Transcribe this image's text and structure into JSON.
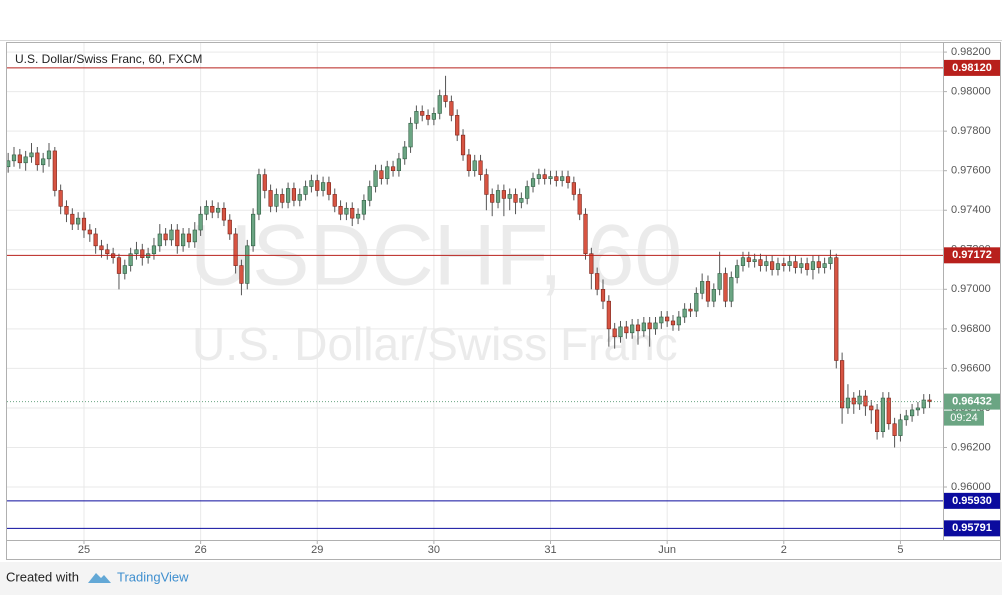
{
  "chart_data": {
    "type": "candlestick",
    "title": "U.S. Dollar/Swiss Franc, 60, FXCM",
    "watermark": "USDCHF, 60",
    "watermark_subtitle": "U.S. Dollar/Swiss Franc",
    "footer_text": "Created with",
    "footer_brand": "TradingView",
    "up_color": "#6ba583",
    "down_color": "#d75442",
    "ylim": [
      0.95732,
      0.98251
    ],
    "yticks": [
      {
        "value": 0.982,
        "label": "0.98200"
      },
      {
        "value": 0.98,
        "label": "0.98000"
      },
      {
        "value": 0.978,
        "label": "0.97800"
      },
      {
        "value": 0.976,
        "label": "0.97600"
      },
      {
        "value": 0.974,
        "label": "0.97400"
      },
      {
        "value": 0.972,
        "label": "0.97200"
      },
      {
        "value": 0.97,
        "label": "0.97000"
      },
      {
        "value": 0.968,
        "label": "0.96800"
      },
      {
        "value": 0.966,
        "label": "0.96600"
      },
      {
        "value": 0.964,
        "label": "0.96400"
      },
      {
        "value": 0.962,
        "label": "0.96200"
      },
      {
        "value": 0.96,
        "label": "0.96000"
      }
    ],
    "xlim": [
      -0.2,
      160.3
    ],
    "xticks": [
      {
        "value": 13,
        "label": "25"
      },
      {
        "value": 33,
        "label": "26"
      },
      {
        "value": 53,
        "label": "29"
      },
      {
        "value": 73,
        "label": "30"
      },
      {
        "value": 93,
        "label": "31"
      },
      {
        "value": 113,
        "label": "Jun"
      },
      {
        "value": 133,
        "label": "2"
      },
      {
        "value": 153,
        "label": "5"
      }
    ],
    "grid": true,
    "hlines": [
      {
        "value": 0.9812,
        "label": "0.98120",
        "color": "#b8201c"
      },
      {
        "value": 0.97172,
        "label": "0.97172",
        "color": "#b8201c"
      },
      {
        "value": 0.9593,
        "label": "0.95930",
        "color": "#0b0b9e"
      },
      {
        "value": 0.95791,
        "color": "#0b0b9e"
      }
    ],
    "last_price": 0.96432,
    "countdown": "09:24",
    "ohlc": [
      [
        0.9762,
        0.9769,
        0.9759,
        0.9765
      ],
      [
        0.9765,
        0.9772,
        0.9762,
        0.9768
      ],
      [
        0.9768,
        0.9771,
        0.9761,
        0.9764
      ],
      [
        0.9764,
        0.977,
        0.976,
        0.9767
      ],
      [
        0.9767,
        0.9774,
        0.9764,
        0.9769
      ],
      [
        0.9769,
        0.9772,
        0.976,
        0.9763
      ],
      [
        0.9763,
        0.9769,
        0.9759,
        0.9766
      ],
      [
        0.9766,
        0.9774,
        0.9762,
        0.977
      ],
      [
        0.977,
        0.9772,
        0.9747,
        0.975
      ],
      [
        0.975,
        0.9753,
        0.9738,
        0.9742
      ],
      [
        0.9742,
        0.9745,
        0.9734,
        0.9738
      ],
      [
        0.9738,
        0.9741,
        0.973,
        0.9733
      ],
      [
        0.9733,
        0.9739,
        0.973,
        0.9736
      ],
      [
        0.9736,
        0.9739,
        0.9726,
        0.973
      ],
      [
        0.973,
        0.9733,
        0.9724,
        0.9728
      ],
      [
        0.9728,
        0.9731,
        0.9718,
        0.9722
      ],
      [
        0.9722,
        0.9725,
        0.9716,
        0.972
      ],
      [
        0.972,
        0.9723,
        0.9715,
        0.9718
      ],
      [
        0.9718,
        0.9721,
        0.9713,
        0.9716
      ],
      [
        0.9716,
        0.9718,
        0.97,
        0.9708
      ],
      [
        0.9708,
        0.9715,
        0.9705,
        0.9712
      ],
      [
        0.9712,
        0.9721,
        0.9709,
        0.9718
      ],
      [
        0.9718,
        0.9724,
        0.9715,
        0.972
      ],
      [
        0.972,
        0.9723,
        0.9712,
        0.9716
      ],
      [
        0.9716,
        0.9721,
        0.9713,
        0.9718
      ],
      [
        0.9718,
        0.9726,
        0.9715,
        0.9722
      ],
      [
        0.9722,
        0.9733,
        0.9719,
        0.9728
      ],
      [
        0.9728,
        0.9731,
        0.9722,
        0.9725
      ],
      [
        0.9725,
        0.9733,
        0.9722,
        0.973
      ],
      [
        0.973,
        0.9733,
        0.9718,
        0.9722
      ],
      [
        0.9722,
        0.9731,
        0.9719,
        0.9728
      ],
      [
        0.9728,
        0.9731,
        0.9721,
        0.9724
      ],
      [
        0.9724,
        0.9734,
        0.9721,
        0.973
      ],
      [
        0.973,
        0.9742,
        0.9727,
        0.9738
      ],
      [
        0.9738,
        0.9745,
        0.9735,
        0.9742
      ],
      [
        0.9742,
        0.9745,
        0.9736,
        0.9739
      ],
      [
        0.9739,
        0.9744,
        0.9736,
        0.9741
      ],
      [
        0.9741,
        0.9744,
        0.9732,
        0.9735
      ],
      [
        0.9735,
        0.9738,
        0.9725,
        0.9728
      ],
      [
        0.9728,
        0.9731,
        0.9708,
        0.9712
      ],
      [
        0.9712,
        0.9715,
        0.9697,
        0.9703
      ],
      [
        0.9703,
        0.9725,
        0.97,
        0.9722
      ],
      [
        0.9722,
        0.9741,
        0.9719,
        0.9738
      ],
      [
        0.9738,
        0.9761,
        0.9735,
        0.9758
      ],
      [
        0.9758,
        0.9761,
        0.9746,
        0.975
      ],
      [
        0.975,
        0.9753,
        0.9739,
        0.9742
      ],
      [
        0.9742,
        0.9751,
        0.9739,
        0.9748
      ],
      [
        0.9748,
        0.9751,
        0.9741,
        0.9744
      ],
      [
        0.9744,
        0.9754,
        0.9741,
        0.9751
      ],
      [
        0.9751,
        0.9754,
        0.9742,
        0.9745
      ],
      [
        0.9745,
        0.9751,
        0.9742,
        0.9748
      ],
      [
        0.9748,
        0.9755,
        0.9745,
        0.9752
      ],
      [
        0.9752,
        0.9758,
        0.9749,
        0.9755
      ],
      [
        0.9755,
        0.9758,
        0.9747,
        0.975
      ],
      [
        0.975,
        0.9757,
        0.9747,
        0.9754
      ],
      [
        0.9754,
        0.9757,
        0.9745,
        0.9748
      ],
      [
        0.9748,
        0.9751,
        0.9739,
        0.9742
      ],
      [
        0.9742,
        0.9745,
        0.9735,
        0.9738
      ],
      [
        0.9738,
        0.9744,
        0.9735,
        0.9741
      ],
      [
        0.9741,
        0.9744,
        0.9732,
        0.9736
      ],
      [
        0.9736,
        0.9741,
        0.9733,
        0.9738
      ],
      [
        0.9738,
        0.9748,
        0.9735,
        0.9745
      ],
      [
        0.9745,
        0.9755,
        0.9742,
        0.9752
      ],
      [
        0.9752,
        0.9763,
        0.9749,
        0.976
      ],
      [
        0.976,
        0.9763,
        0.9753,
        0.9756
      ],
      [
        0.9756,
        0.9765,
        0.9753,
        0.9762
      ],
      [
        0.9762,
        0.9765,
        0.9757,
        0.976
      ],
      [
        0.976,
        0.9769,
        0.9757,
        0.9766
      ],
      [
        0.9766,
        0.9775,
        0.9763,
        0.9772
      ],
      [
        0.9772,
        0.9787,
        0.9769,
        0.9784
      ],
      [
        0.9784,
        0.9793,
        0.9781,
        0.979
      ],
      [
        0.979,
        0.9793,
        0.9785,
        0.9788
      ],
      [
        0.9788,
        0.9791,
        0.9783,
        0.9786
      ],
      [
        0.9786,
        0.9792,
        0.9783,
        0.9789
      ],
      [
        0.9789,
        0.9801,
        0.9786,
        0.9798
      ],
      [
        0.9798,
        0.9808,
        0.9792,
        0.9795
      ],
      [
        0.9795,
        0.9798,
        0.9785,
        0.9788
      ],
      [
        0.9788,
        0.9791,
        0.9775,
        0.9778
      ],
      [
        0.9778,
        0.9781,
        0.9765,
        0.9768
      ],
      [
        0.9768,
        0.9771,
        0.9757,
        0.976
      ],
      [
        0.976,
        0.9768,
        0.9757,
        0.9765
      ],
      [
        0.9765,
        0.9768,
        0.9755,
        0.9758
      ],
      [
        0.9758,
        0.9761,
        0.974,
        0.9748
      ],
      [
        0.9748,
        0.9751,
        0.9737,
        0.9744
      ],
      [
        0.9744,
        0.9753,
        0.9741,
        0.975
      ],
      [
        0.975,
        0.9753,
        0.9737,
        0.9746
      ],
      [
        0.9746,
        0.9751,
        0.974,
        0.9748
      ],
      [
        0.9748,
        0.9751,
        0.9738,
        0.9744
      ],
      [
        0.9744,
        0.9749,
        0.9741,
        0.9746
      ],
      [
        0.9746,
        0.9755,
        0.9743,
        0.9752
      ],
      [
        0.9752,
        0.9759,
        0.9749,
        0.9756
      ],
      [
        0.9756,
        0.9761,
        0.9753,
        0.9758
      ],
      [
        0.9758,
        0.9761,
        0.9753,
        0.9756
      ],
      [
        0.9756,
        0.976,
        0.9753,
        0.9757
      ],
      [
        0.9757,
        0.976,
        0.9752,
        0.9755
      ],
      [
        0.9755,
        0.976,
        0.9752,
        0.9757
      ],
      [
        0.9757,
        0.976,
        0.9751,
        0.9754
      ],
      [
        0.9754,
        0.9757,
        0.9745,
        0.9748
      ],
      [
        0.9748,
        0.9751,
        0.9735,
        0.9738
      ],
      [
        0.9738,
        0.9741,
        0.9715,
        0.9718
      ],
      [
        0.9718,
        0.9721,
        0.97,
        0.9708
      ],
      [
        0.9708,
        0.9711,
        0.9697,
        0.97
      ],
      [
        0.97,
        0.9705,
        0.969,
        0.9694
      ],
      [
        0.9694,
        0.9697,
        0.9671,
        0.968
      ],
      [
        0.968,
        0.9683,
        0.967,
        0.9676
      ],
      [
        0.9676,
        0.9684,
        0.9673,
        0.9681
      ],
      [
        0.9681,
        0.9684,
        0.9675,
        0.9678
      ],
      [
        0.9678,
        0.9685,
        0.9675,
        0.9682
      ],
      [
        0.9682,
        0.9685,
        0.9672,
        0.9679
      ],
      [
        0.9679,
        0.9686,
        0.9676,
        0.9683
      ],
      [
        0.9683,
        0.9686,
        0.9671,
        0.968
      ],
      [
        0.968,
        0.9686,
        0.9677,
        0.9683
      ],
      [
        0.9683,
        0.9689,
        0.968,
        0.9686
      ],
      [
        0.9686,
        0.9689,
        0.9681,
        0.9684
      ],
      [
        0.9684,
        0.9687,
        0.9679,
        0.9682
      ],
      [
        0.9682,
        0.9689,
        0.9679,
        0.9686
      ],
      [
        0.9686,
        0.9693,
        0.9683,
        0.969
      ],
      [
        0.969,
        0.9693,
        0.9686,
        0.9689
      ],
      [
        0.9689,
        0.9701,
        0.9686,
        0.9698
      ],
      [
        0.9698,
        0.9708,
        0.9695,
        0.9704
      ],
      [
        0.9704,
        0.9707,
        0.9691,
        0.9694
      ],
      [
        0.9694,
        0.9703,
        0.9691,
        0.97
      ],
      [
        0.97,
        0.9719,
        0.9697,
        0.9708
      ],
      [
        0.9708,
        0.9711,
        0.9691,
        0.9694
      ],
      [
        0.9694,
        0.9709,
        0.9691,
        0.9706
      ],
      [
        0.9706,
        0.9715,
        0.9703,
        0.9712
      ],
      [
        0.9712,
        0.9719,
        0.9709,
        0.9716
      ],
      [
        0.9716,
        0.9719,
        0.9711,
        0.9714
      ],
      [
        0.9714,
        0.9718,
        0.9711,
        0.9715
      ],
      [
        0.9715,
        0.9718,
        0.9709,
        0.9712
      ],
      [
        0.9712,
        0.9717,
        0.9709,
        0.9714
      ],
      [
        0.9714,
        0.9717,
        0.9707,
        0.971
      ],
      [
        0.971,
        0.9716,
        0.9707,
        0.9713
      ],
      [
        0.9713,
        0.9716,
        0.9709,
        0.9712
      ],
      [
        0.9712,
        0.9717,
        0.9709,
        0.9714
      ],
      [
        0.9714,
        0.9717,
        0.9708,
        0.9711
      ],
      [
        0.9711,
        0.9716,
        0.9708,
        0.9713
      ],
      [
        0.9713,
        0.9716,
        0.9707,
        0.971
      ],
      [
        0.971,
        0.9717,
        0.9705,
        0.9714
      ],
      [
        0.9714,
        0.9717,
        0.9708,
        0.9711
      ],
      [
        0.9711,
        0.9716,
        0.9708,
        0.9713
      ],
      [
        0.9713,
        0.972,
        0.971,
        0.9716
      ],
      [
        0.9716,
        0.9718,
        0.966,
        0.9664
      ],
      [
        0.9664,
        0.9668,
        0.9632,
        0.964
      ],
      [
        0.964,
        0.9652,
        0.9637,
        0.9645
      ],
      [
        0.9645,
        0.9648,
        0.9637,
        0.9642
      ],
      [
        0.9642,
        0.9649,
        0.9639,
        0.9646
      ],
      [
        0.9646,
        0.9649,
        0.9636,
        0.9641
      ],
      [
        0.9641,
        0.9644,
        0.9632,
        0.9639
      ],
      [
        0.9639,
        0.9642,
        0.9624,
        0.9628
      ],
      [
        0.9628,
        0.9648,
        0.9625,
        0.9645
      ],
      [
        0.9645,
        0.9648,
        0.9629,
        0.9632
      ],
      [
        0.9632,
        0.9635,
        0.962,
        0.9626
      ],
      [
        0.9626,
        0.9637,
        0.9623,
        0.9634
      ],
      [
        0.9634,
        0.9639,
        0.9631,
        0.9636
      ],
      [
        0.9636,
        0.9642,
        0.9633,
        0.9639
      ],
      [
        0.9639,
        0.9643,
        0.9636,
        0.964
      ],
      [
        0.964,
        0.9647,
        0.9637,
        0.9644
      ],
      [
        0.9644,
        0.9647,
        0.964,
        0.96432
      ]
    ]
  }
}
